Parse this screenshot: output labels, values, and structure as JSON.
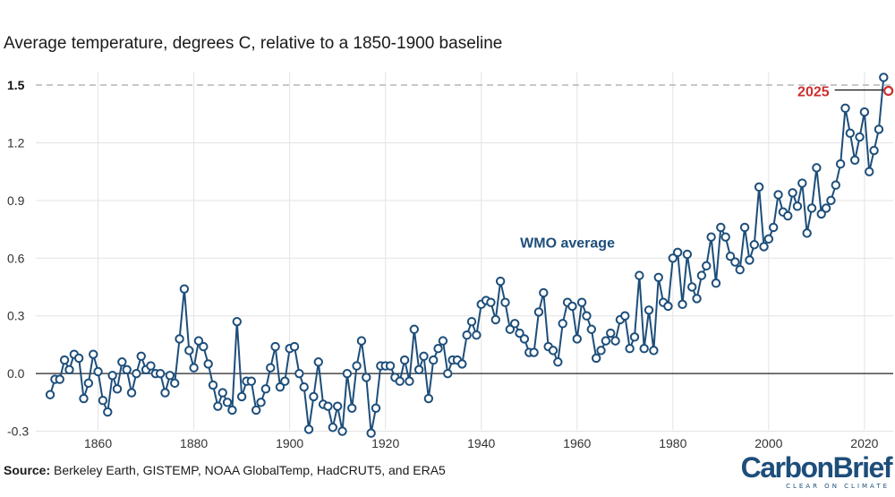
{
  "chart_data": {
    "type": "line",
    "title": "Average temperature, degrees C, relative to a 1850-1900 baseline",
    "xlabel": "",
    "ylabel": "",
    "xlim": [
      1847,
      2026
    ],
    "ylim": [
      -0.33,
      1.57
    ],
    "x_ticks": [
      1860,
      1880,
      1900,
      1920,
      1940,
      1960,
      1980,
      2000,
      2020
    ],
    "y_ticks": [
      {
        "value": 1.5,
        "label": "1.5"
      },
      {
        "value": 1.2,
        "label": "1.2"
      },
      {
        "value": 0.9,
        "label": "0.9"
      },
      {
        "value": 0.6,
        "label": "0.6"
      },
      {
        "value": 0.3,
        "label": "0.3"
      },
      {
        "value": 0.0,
        "label": "0.0"
      },
      {
        "value": -0.3,
        "label": "-0.3"
      }
    ],
    "reference_line": {
      "value": 1.5,
      "style": "dashed"
    },
    "zero_line": 0.0,
    "series": [
      {
        "name": "WMO average",
        "label": "WMO average",
        "color": "#1d4e7a",
        "start_year": 1850,
        "values": [
          -0.11,
          -0.03,
          -0.03,
          0.07,
          0.02,
          0.1,
          0.08,
          -0.13,
          -0.05,
          0.1,
          0.01,
          -0.14,
          -0.2,
          -0.01,
          -0.08,
          0.06,
          0.02,
          -0.1,
          0.0,
          0.09,
          0.02,
          0.04,
          0.0,
          0.0,
          -0.1,
          -0.01,
          -0.05,
          0.18,
          0.44,
          0.12,
          0.03,
          0.17,
          0.14,
          0.05,
          -0.06,
          -0.17,
          -0.1,
          -0.15,
          -0.19,
          0.27,
          -0.12,
          -0.04,
          -0.04,
          -0.19,
          -0.15,
          -0.08,
          0.03,
          0.14,
          -0.07,
          -0.04,
          0.13,
          0.14,
          0.0,
          -0.07,
          -0.29,
          -0.12,
          0.06,
          -0.16,
          -0.17,
          -0.28,
          -0.17,
          -0.3,
          0.0,
          -0.18,
          0.04,
          0.17,
          -0.02,
          -0.31,
          -0.18,
          0.04,
          0.04,
          0.04,
          -0.02,
          -0.04,
          0.07,
          -0.04,
          0.23,
          0.02,
          0.09,
          -0.13,
          0.07,
          0.13,
          0.17,
          0.0,
          0.07,
          0.07,
          0.05,
          0.2,
          0.27,
          0.2,
          0.36,
          0.38,
          0.37,
          0.28,
          0.48,
          0.37,
          0.23,
          0.26,
          0.21,
          0.18,
          0.11,
          0.11,
          0.32,
          0.42,
          0.14,
          0.12,
          0.06,
          0.26,
          0.37,
          0.35,
          0.18,
          0.37,
          0.3,
          0.23,
          0.08,
          0.12,
          0.17,
          0.21,
          0.17,
          0.28,
          0.3,
          0.13,
          0.19,
          0.51,
          0.13,
          0.33,
          0.12,
          0.5,
          0.37,
          0.35,
          0.6,
          0.63,
          0.36,
          0.62,
          0.45,
          0.39,
          0.51,
          0.56,
          0.71,
          0.47,
          0.76,
          0.71,
          0.61,
          0.58,
          0.54,
          0.76,
          0.59,
          0.67,
          0.97,
          0.66,
          0.7,
          0.76,
          0.93,
          0.84,
          0.82,
          0.94,
          0.87,
          0.99,
          0.73,
          0.86,
          1.07,
          0.83,
          0.86,
          0.9,
          0.98,
          1.09,
          1.38,
          1.25,
          1.11,
          1.23,
          1.36,
          1.05,
          1.16,
          1.27,
          1.54
        ]
      }
    ],
    "highlight_point": {
      "label": "2025",
      "x": 2025,
      "y": 1.47,
      "color": "#cc2e2e"
    },
    "grid": true,
    "source_label": "Source:",
    "source_text": "Berkeley Earth, GISTEMP, NOAA GlobalTemp, HadCRUT5, and ERA5"
  },
  "logo": {
    "name": "CarbonBrief",
    "tagline": "CLEAR ON CLIMATE"
  },
  "colors": {
    "series": "#1d4e7a",
    "highlight": "#cc2e2e",
    "grid": "#e3e3e3",
    "reference": "#b5b5b5",
    "axis": "#222222"
  }
}
